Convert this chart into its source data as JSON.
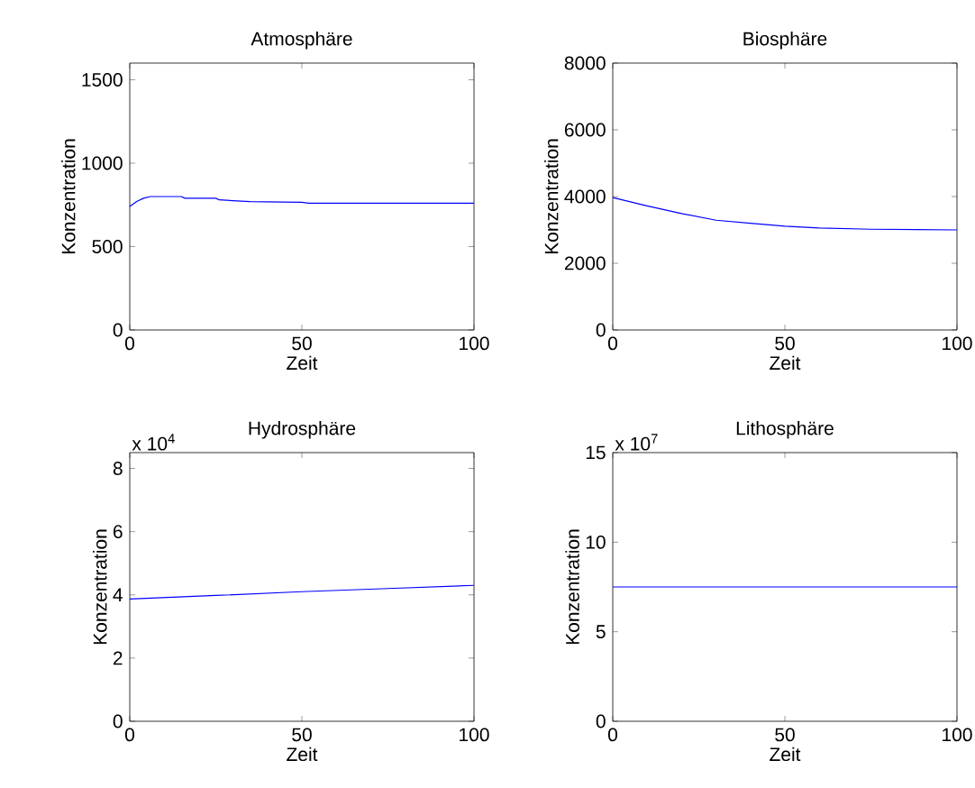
{
  "chart_data": [
    {
      "type": "line",
      "title": "Atmosphäre",
      "xlabel": "Zeit",
      "ylabel": "Konzentration",
      "xlim": [
        0,
        100
      ],
      "ylim": [
        0,
        1600
      ],
      "xticks": [
        0,
        50,
        100
      ],
      "yticks": [
        0,
        500,
        1000,
        1500
      ],
      "series": [
        {
          "color": "#0000ff",
          "x": [
            0,
            2,
            4,
            6,
            10,
            15,
            16,
            25,
            26,
            35,
            50,
            52,
            100
          ],
          "values": [
            740,
            770,
            790,
            800,
            800,
            800,
            790,
            790,
            780,
            770,
            765,
            760,
            760
          ]
        }
      ]
    },
    {
      "type": "line",
      "title": "Biosphäre",
      "xlabel": "Zeit",
      "ylabel": "Konzentration",
      "xlim": [
        0,
        100
      ],
      "ylim": [
        0,
        8000
      ],
      "xticks": [
        0,
        50,
        100
      ],
      "yticks": [
        0,
        2000,
        4000,
        6000,
        8000
      ],
      "series": [
        {
          "color": "#0000ff",
          "x": [
            0,
            10,
            20,
            30,
            40,
            50,
            60,
            75,
            100
          ],
          "values": [
            3970,
            3720,
            3490,
            3290,
            3200,
            3110,
            3060,
            3020,
            3000
          ]
        }
      ]
    },
    {
      "type": "line",
      "title": "Hydrosphäre",
      "xlabel": "Zeit",
      "ylabel": "Konzentration",
      "annotations": [
        "x 10$^{4}$"
      ],
      "xlim": [
        0,
        100
      ],
      "ylim": [
        0,
        8.5
      ],
      "xticks": [
        0,
        50,
        100
      ],
      "yticks": [
        0,
        2,
        4,
        6,
        8
      ],
      "series": [
        {
          "color": "#0000ff",
          "x": [
            0,
            25,
            50,
            75,
            100
          ],
          "values": [
            3.87,
            3.98,
            4.1,
            4.2,
            4.3
          ]
        }
      ]
    },
    {
      "type": "line",
      "title": "Lithosphäre",
      "xlabel": "Zeit",
      "ylabel": "Konzentration",
      "annotations": [
        "x 10$^{7}$"
      ],
      "xlim": [
        0,
        100
      ],
      "ylim": [
        0,
        15
      ],
      "xticks": [
        0,
        50,
        100
      ],
      "yticks": [
        0,
        5,
        10,
        15
      ],
      "series": [
        {
          "color": "#0000ff",
          "x": [
            0,
            100
          ],
          "values": [
            7.5,
            7.5
          ]
        }
      ]
    }
  ]
}
